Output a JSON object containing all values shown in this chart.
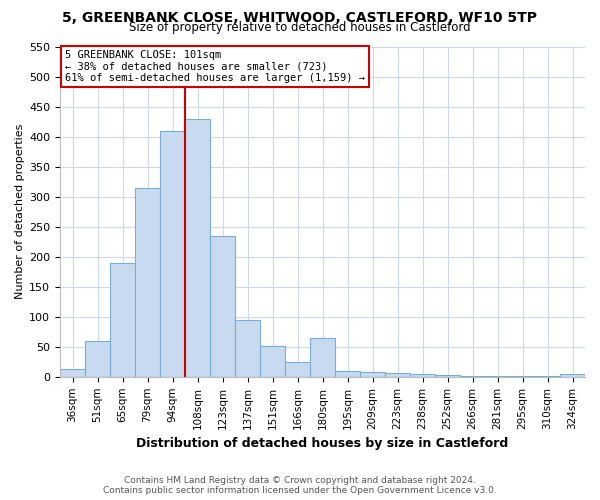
{
  "title": "5, GREENBANK CLOSE, WHITWOOD, CASTLEFORD, WF10 5TP",
  "subtitle": "Size of property relative to detached houses in Castleford",
  "xlabel": "Distribution of detached houses by size in Castleford",
  "ylabel": "Number of detached properties",
  "categories": [
    "36sqm",
    "51sqm",
    "65sqm",
    "79sqm",
    "94sqm",
    "108sqm",
    "123sqm",
    "137sqm",
    "151sqm",
    "166sqm",
    "180sqm",
    "195sqm",
    "209sqm",
    "223sqm",
    "238sqm",
    "252sqm",
    "266sqm",
    "281sqm",
    "295sqm",
    "310sqm",
    "324sqm"
  ],
  "values": [
    13,
    60,
    190,
    315,
    410,
    430,
    235,
    95,
    52,
    25,
    65,
    10,
    8,
    7,
    4,
    3,
    2,
    2,
    1,
    1,
    4
  ],
  "bar_color": "#c8daf0",
  "bar_edge_color": "#7aadd4",
  "property_line_color": "#cc0000",
  "annotation_text_line1": "5 GREENBANK CLOSE: 101sqm",
  "annotation_text_line2": "← 38% of detached houses are smaller (723)",
  "annotation_text_line3": "61% of semi-detached houses are larger (1,159) →",
  "annotation_box_facecolor": "#ffffff",
  "annotation_box_edgecolor": "#cc0000",
  "ylim": [
    0,
    550
  ],
  "yticks": [
    0,
    50,
    100,
    150,
    200,
    250,
    300,
    350,
    400,
    450,
    500,
    550
  ],
  "footer_line1": "Contains HM Land Registry data © Crown copyright and database right 2024.",
  "footer_line2": "Contains public sector information licensed under the Open Government Licence v3.0.",
  "background_color": "#ffffff",
  "grid_color": "#cdd8e8",
  "title_fontsize": 10,
  "subtitle_fontsize": 8.5,
  "ylabel_fontsize": 8,
  "xlabel_fontsize": 9,
  "tick_fontsize": 7.5,
  "ytick_fontsize": 8,
  "footer_fontsize": 6.5
}
